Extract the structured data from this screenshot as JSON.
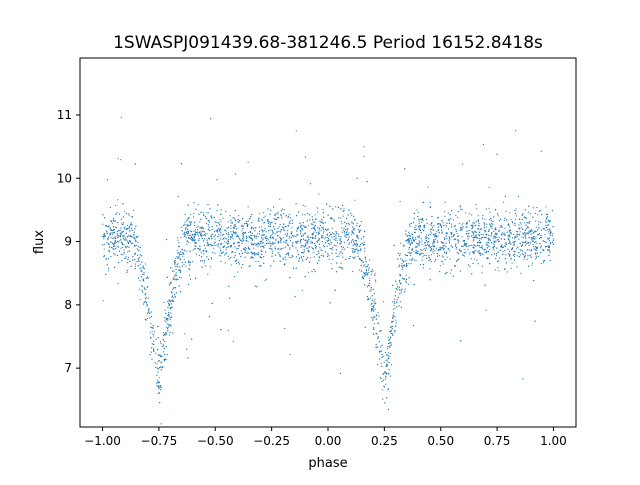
{
  "chart_data": {
    "type": "scatter",
    "title": "1SWASPJ091439.68-381246.5 Period 16152.8418s",
    "xlabel": "phase",
    "ylabel": "flux",
    "xlim": [
      -1.1,
      1.1
    ],
    "ylim": [
      6.07,
      11.9
    ],
    "xticks": [
      -1.0,
      -0.75,
      -0.5,
      -0.25,
      0.0,
      0.25,
      0.5,
      0.75,
      1.0
    ],
    "xtick_labels": [
      "−1.00",
      "−0.75",
      "−0.50",
      "−0.25",
      "0.00",
      "0.25",
      "0.50",
      "0.75",
      "1.00"
    ],
    "yticks": [
      7,
      8,
      9,
      10,
      11
    ],
    "ytick_labels": [
      "7",
      "8",
      "9",
      "10",
      "11"
    ],
    "grid": false,
    "marker_color": "#1f77b4",
    "light_curve": {
      "phase_range": [
        -1.0,
        1.0
      ],
      "baseline_flux": 9.05,
      "scatter_sigma": 0.22,
      "primary_eclipse_phase": -0.75,
      "secondary_eclipse_phase": 0.25,
      "eclipse_min_flux": 6.8,
      "eclipse_half_width": 0.13
    }
  }
}
